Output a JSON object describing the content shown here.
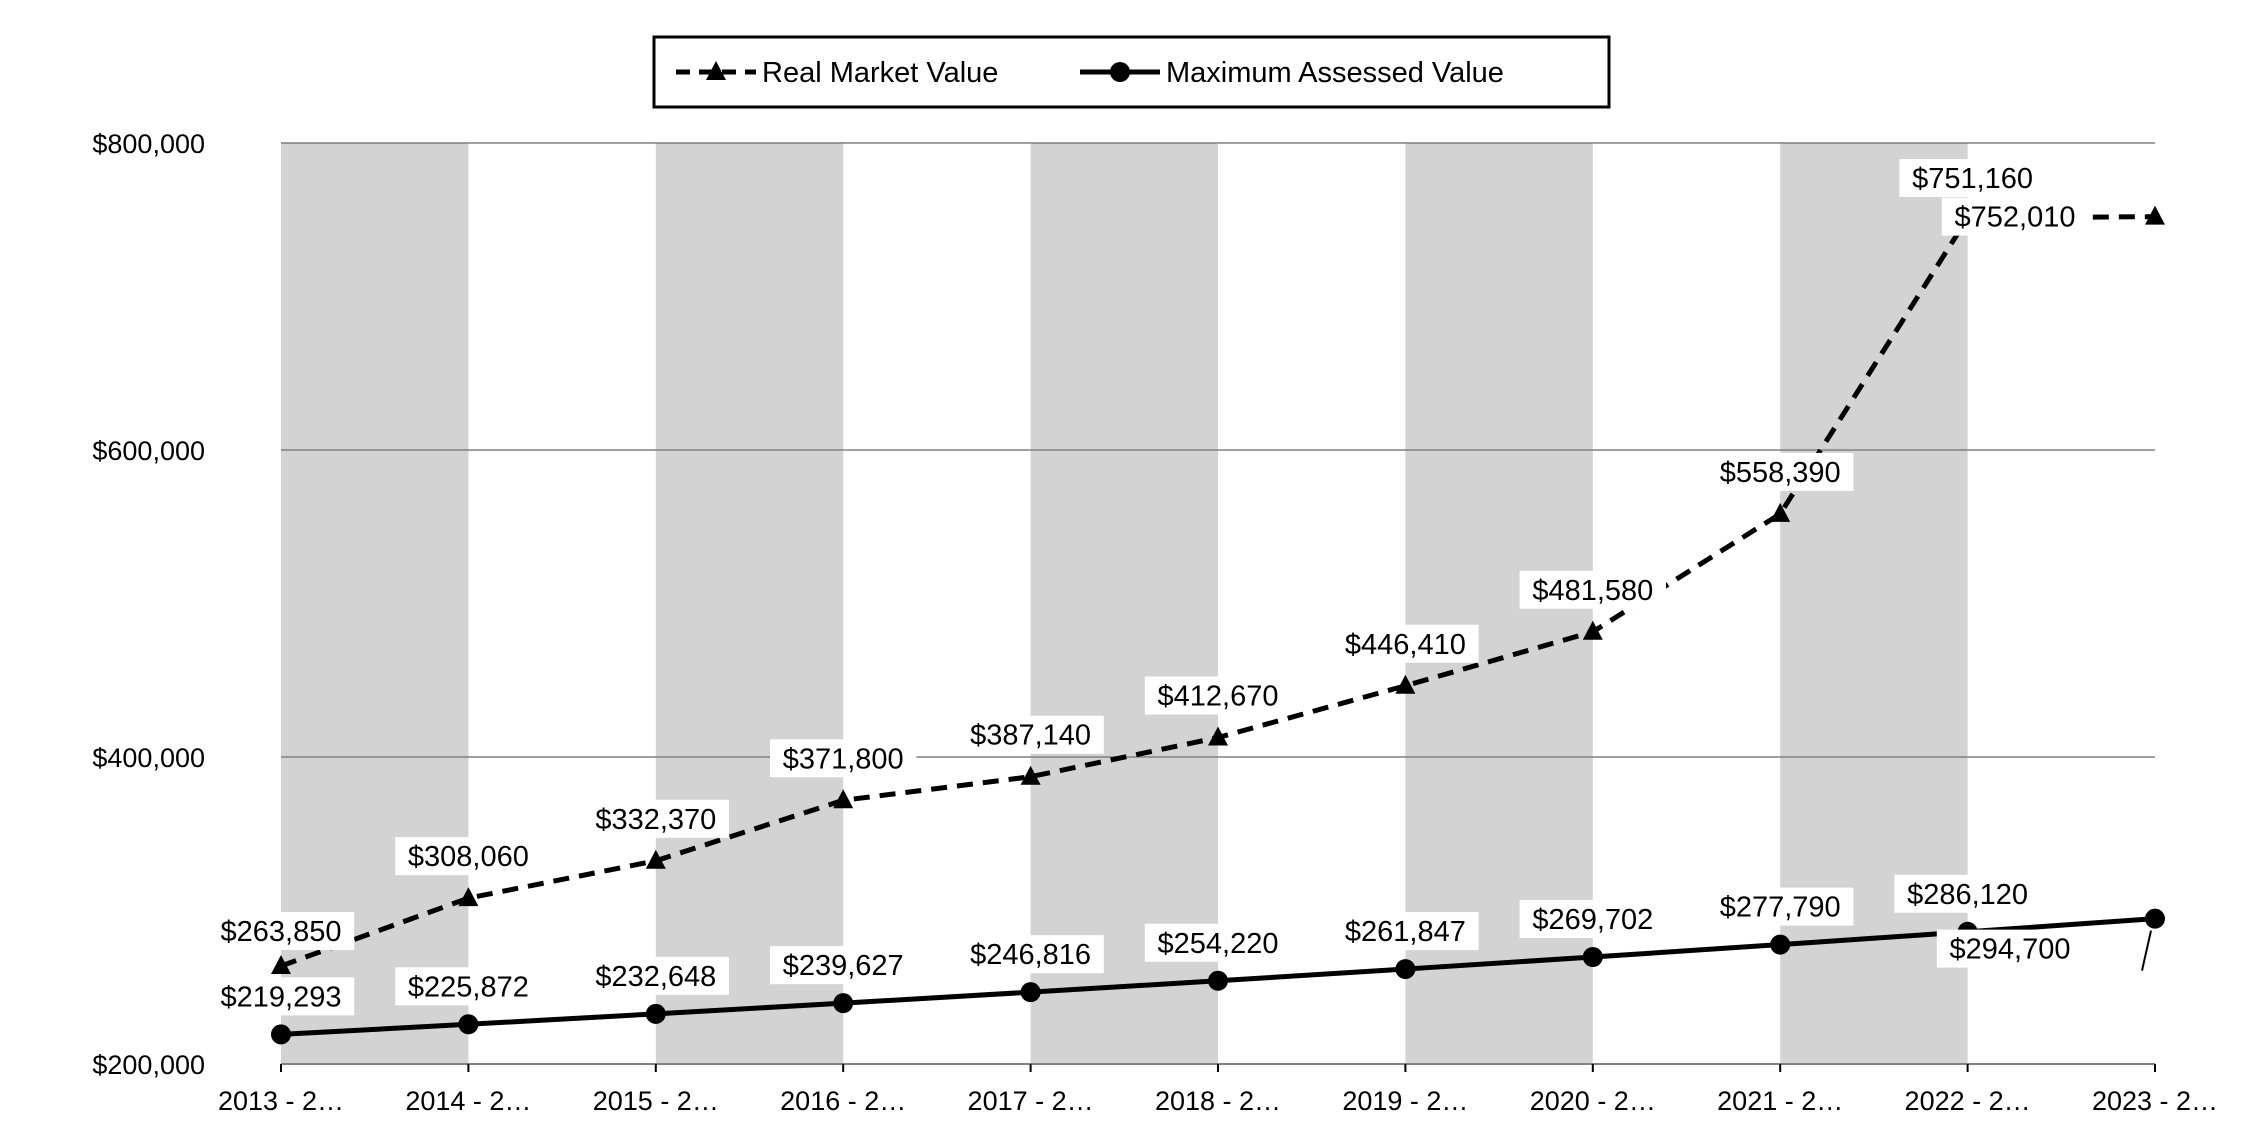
{
  "chart_data": {
    "type": "line",
    "title": "",
    "xlabel": "",
    "ylabel": "",
    "ylim": [
      200000,
      800000
    ],
    "yticks": [
      200000,
      400000,
      600000,
      800000
    ],
    "ytick_labels": [
      "$200,000",
      "$400,000",
      "$600,000",
      "$800,000"
    ],
    "categories": [
      "2013 - 2…",
      "2014 - 2…",
      "2015 - 2…",
      "2016 - 2…",
      "2017 - 2…",
      "2018 - 2…",
      "2019 - 2…",
      "2020 - 2…",
      "2021 - 2…",
      "2022 - 2…",
      "2023 - 2…"
    ],
    "grid": true,
    "legend_position": "top-center",
    "series": [
      {
        "name": "Real Market Value",
        "style": "dashed",
        "marker": "triangle",
        "values": [
          263850,
          308060,
          332370,
          371800,
          387140,
          412670,
          446410,
          481580,
          558390,
          751160,
          752010
        ],
        "labels": [
          "$263,850",
          "$308,060",
          "$332,370",
          "$371,800",
          "$387,140",
          "$412,670",
          "$446,410",
          "$481,580",
          "$558,390",
          "$751,160",
          "$752,010"
        ]
      },
      {
        "name": "Maximum Assessed Value",
        "style": "solid",
        "marker": "circle",
        "values": [
          219293,
          225872,
          232648,
          239627,
          246816,
          254220,
          261847,
          269702,
          277790,
          286120,
          294700
        ],
        "labels": [
          "$219,293",
          "$225,872",
          "$232,648",
          "$239,627",
          "$246,816",
          "$254,220",
          "$261,847",
          "$269,702",
          "$277,790",
          "$286,120",
          "$294,700"
        ]
      }
    ],
    "colors": {
      "line": "#000000",
      "band": "#d3d3d3",
      "grid": "#808080"
    }
  }
}
